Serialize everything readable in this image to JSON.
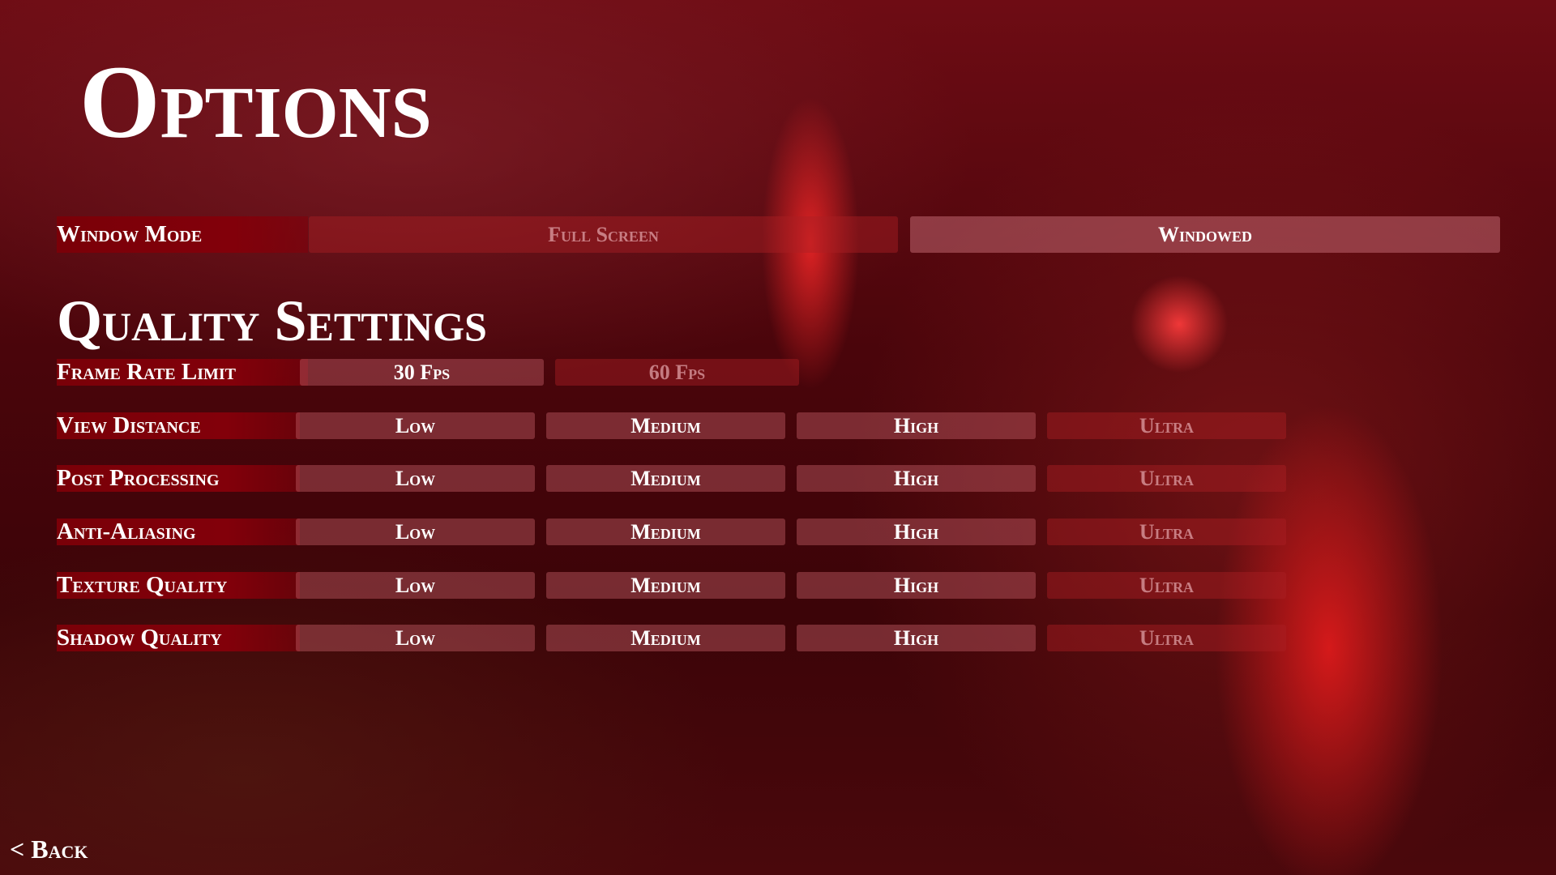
{
  "title": "Options",
  "window_mode": {
    "label": "Window Mode",
    "options": [
      {
        "label": "Full Screen",
        "selected": false
      },
      {
        "label": "Windowed",
        "selected": true
      }
    ]
  },
  "quality": {
    "heading": "Quality Settings",
    "frame_rate": {
      "label": "Frame Rate Limit",
      "options": [
        {
          "label": "30 Fps",
          "selected": true
        },
        {
          "label": "60 Fps",
          "selected": false
        }
      ]
    },
    "levels": [
      "Low",
      "Medium",
      "High",
      "Ultra"
    ],
    "rows": [
      {
        "label": "View Distance",
        "active": [
          true,
          true,
          true,
          false
        ]
      },
      {
        "label": "Post Processing",
        "active": [
          true,
          true,
          true,
          false
        ]
      },
      {
        "label": "Anti-Aliasing",
        "active": [
          true,
          true,
          true,
          false
        ]
      },
      {
        "label": "Texture Quality",
        "active": [
          true,
          true,
          true,
          false
        ]
      },
      {
        "label": "Shadow Quality",
        "active": [
          true,
          true,
          true,
          false
        ]
      }
    ]
  },
  "back_label": "< Back",
  "colors": {
    "label_bg": "#82000a",
    "background": "#4a050b"
  }
}
